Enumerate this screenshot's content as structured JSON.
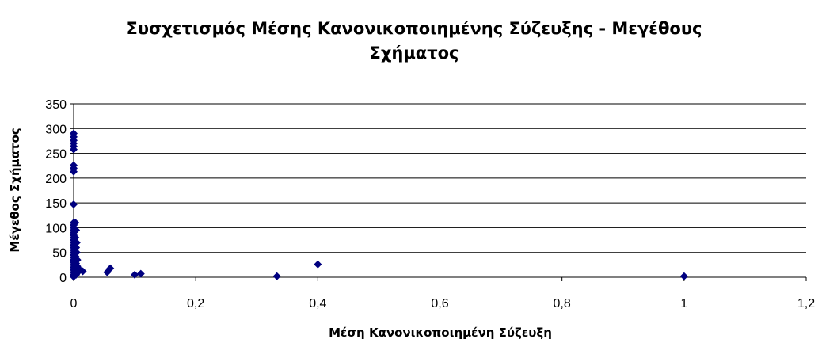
{
  "chart_data": {
    "type": "scatter",
    "title_lines": [
      "Συσχετισμός Μέσης Κανονικοποιημένης Σύζευξης - Μεγέθους",
      "Σχήματος"
    ],
    "xlabel": "Μέση Κανονικοποιημένη Σύζευξη",
    "ylabel": "Μέγεθος Σχήματος",
    "xlim": [
      0,
      1.2
    ],
    "ylim": [
      0,
      350
    ],
    "x_ticks": [
      "0",
      "0,2",
      "0,4",
      "0,6",
      "0,8",
      "1",
      "1,2"
    ],
    "y_ticks": [
      "0",
      "50",
      "100",
      "150",
      "200",
      "250",
      "300",
      "350"
    ],
    "grid": "horizontal",
    "marker_color": "#000080",
    "points": [
      {
        "x": 0,
        "y": 290
      },
      {
        "x": 0,
        "y": 283
      },
      {
        "x": 0,
        "y": 276
      },
      {
        "x": 0,
        "y": 270
      },
      {
        "x": 0,
        "y": 264
      },
      {
        "x": 0,
        "y": 258
      },
      {
        "x": 0,
        "y": 226
      },
      {
        "x": 0,
        "y": 220
      },
      {
        "x": 0,
        "y": 213
      },
      {
        "x": 0,
        "y": 147
      },
      {
        "x": 0,
        "y": 110
      },
      {
        "x": 0,
        "y": 105
      },
      {
        "x": 0,
        "y": 100
      },
      {
        "x": 0,
        "y": 95
      },
      {
        "x": 0,
        "y": 90
      },
      {
        "x": 0,
        "y": 85
      },
      {
        "x": 0,
        "y": 80
      },
      {
        "x": 0,
        "y": 75
      },
      {
        "x": 0,
        "y": 70
      },
      {
        "x": 0,
        "y": 65
      },
      {
        "x": 0,
        "y": 60
      },
      {
        "x": 0,
        "y": 55
      },
      {
        "x": 0,
        "y": 50
      },
      {
        "x": 0,
        "y": 45
      },
      {
        "x": 0,
        "y": 40
      },
      {
        "x": 0,
        "y": 35
      },
      {
        "x": 0,
        "y": 30
      },
      {
        "x": 0,
        "y": 25
      },
      {
        "x": 0,
        "y": 20
      },
      {
        "x": 0,
        "y": 15
      },
      {
        "x": 0,
        "y": 10
      },
      {
        "x": 0,
        "y": 5
      },
      {
        "x": 0,
        "y": 1
      },
      {
        "x": 0.003,
        "y": 110
      },
      {
        "x": 0.004,
        "y": 95
      },
      {
        "x": 0.003,
        "y": 80
      },
      {
        "x": 0.005,
        "y": 70
      },
      {
        "x": 0.004,
        "y": 60
      },
      {
        "x": 0.005,
        "y": 50
      },
      {
        "x": 0.003,
        "y": 42
      },
      {
        "x": 0.006,
        "y": 35
      },
      {
        "x": 0.004,
        "y": 28
      },
      {
        "x": 0.006,
        "y": 22
      },
      {
        "x": 0.005,
        "y": 15
      },
      {
        "x": 0.007,
        "y": 10
      },
      {
        "x": 0.004,
        "y": 5
      },
      {
        "x": 0.008,
        "y": 18
      },
      {
        "x": 0.015,
        "y": 12
      },
      {
        "x": 0.055,
        "y": 10
      },
      {
        "x": 0.06,
        "y": 18
      },
      {
        "x": 0.1,
        "y": 5
      },
      {
        "x": 0.11,
        "y": 7
      },
      {
        "x": 0.333,
        "y": 2
      },
      {
        "x": 0.4,
        "y": 26
      },
      {
        "x": 1.0,
        "y": 2
      }
    ]
  }
}
